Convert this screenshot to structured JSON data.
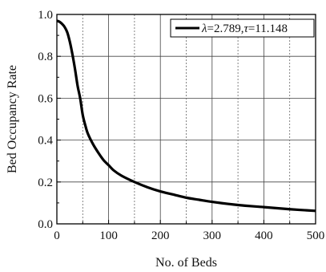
{
  "chart_data": {
    "type": "line",
    "xlabel": "No. of Beds",
    "ylabel": "Bed Occupancy Rate",
    "xlim": [
      0,
      500
    ],
    "ylim": [
      0.0,
      1.0
    ],
    "x_ticks": [
      0,
      100,
      200,
      300,
      400,
      500
    ],
    "x_tick_labels": [
      "0",
      "100",
      "200",
      "300",
      "400",
      "500"
    ],
    "y_ticks": [
      0.0,
      0.2,
      0.4,
      0.6,
      0.8,
      1.0
    ],
    "y_tick_labels": [
      "0.0",
      "0.2",
      "0.4",
      "0.6",
      "0.8",
      "1.0"
    ],
    "grid": {
      "horizontal_solid": [
        0.2,
        0.4,
        0.6,
        0.8
      ],
      "vertical_solid": [
        100,
        200,
        300,
        400
      ],
      "vertical_dotted": [
        50,
        150,
        250,
        350,
        450
      ]
    },
    "legend": {
      "placement": "top-right",
      "entries": [
        {
          "lambda_symbol": "λ",
          "lambda_value": "=2.789,",
          "tau_symbol": "τ",
          "tau_value": "=11.148"
        }
      ]
    },
    "series": [
      {
        "color": "#000000",
        "x": [
          0,
          5,
          10,
          15,
          20,
          25,
          30,
          35,
          40,
          45,
          50,
          55,
          60,
          70,
          80,
          90,
          100,
          110,
          125,
          150,
          175,
          200,
          225,
          250,
          275,
          300,
          350,
          400,
          450,
          500
        ],
        "y": [
          0.97,
          0.965,
          0.955,
          0.94,
          0.915,
          0.87,
          0.81,
          0.74,
          0.66,
          0.6,
          0.52,
          0.47,
          0.43,
          0.38,
          0.34,
          0.305,
          0.28,
          0.255,
          0.23,
          0.2,
          0.175,
          0.155,
          0.14,
          0.125,
          0.115,
          0.105,
          0.09,
          0.08,
          0.07,
          0.062
        ]
      }
    ]
  }
}
